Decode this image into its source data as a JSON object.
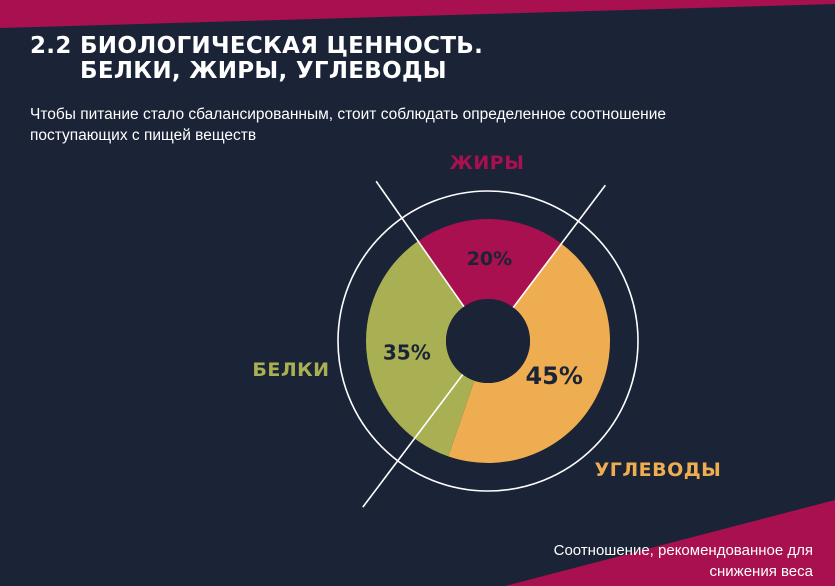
{
  "header": {
    "title_line1": "2.2 БИОЛОГИЧЕСКАЯ ЦЕННОСТЬ.",
    "title_line2": "БЕЛКИ, ЖИРЫ, УГЛЕВОДЫ",
    "subtitle": "Чтобы питание стало сбалансированным, стоит соблюдать определенное соотношение поступающих с пищей веществ"
  },
  "footnote": {
    "line1": "Соотношение, рекомендованное для",
    "line2": "снижения веса"
  },
  "colors": {
    "background": "#1b2336",
    "accent": "#a9104f",
    "ring": "#ffffff"
  },
  "chart_data": {
    "type": "pie",
    "categories": [
      "ЖИРЫ",
      "УГЛЕВОДЫ",
      "БЕЛКИ"
    ],
    "values": [
      20,
      45,
      35
    ],
    "data_labels": [
      "20%",
      "45%",
      "35%"
    ],
    "colors": [
      "#a9104f",
      "#efad52",
      "#a9b053"
    ],
    "label_colors": [
      "#a9104f",
      "#efad52",
      "#a9b053"
    ]
  }
}
